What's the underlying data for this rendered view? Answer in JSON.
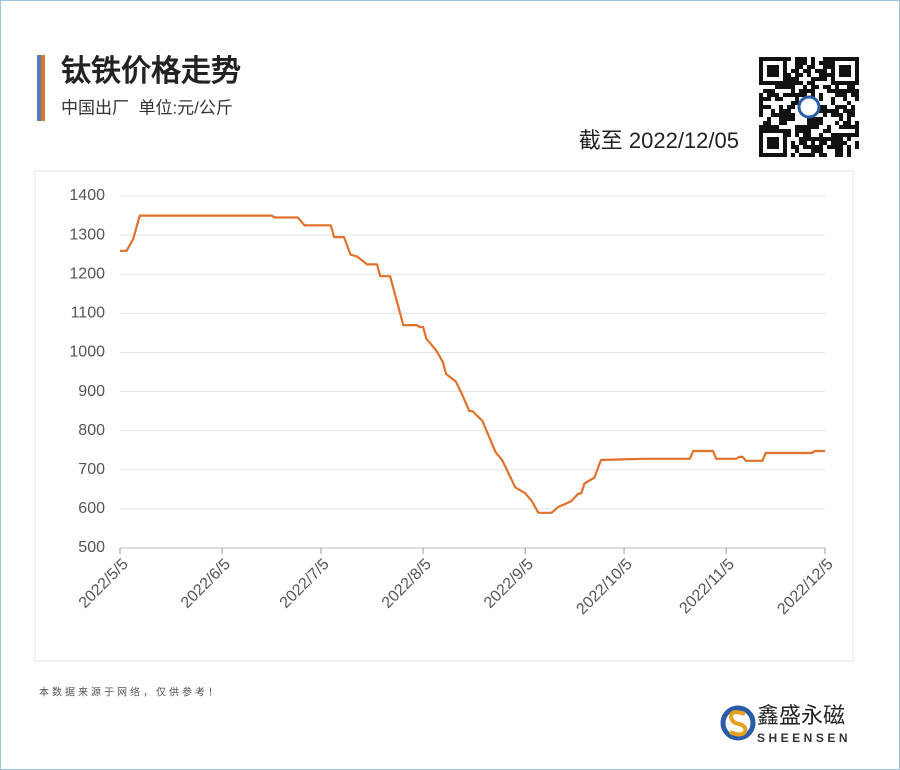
{
  "header": {
    "title": "钛铁价格走势",
    "subtitle": "中国出厂  单位:元/公斤",
    "as_of": "截至 2022/12/05"
  },
  "chart_data": {
    "type": "line",
    "color": "#e0712b",
    "grid": true,
    "x": [
      "2022/5/5",
      "2022/5/7",
      "2022/5/9",
      "2022/5/11",
      "2022/6/20",
      "2022/6/21",
      "2022/6/28",
      "2022/6/30",
      "2022/7/8",
      "2022/7/9",
      "2022/7/12",
      "2022/7/14",
      "2022/7/16",
      "2022/7/19",
      "2022/7/22",
      "2022/7/23",
      "2022/7/26",
      "2022/7/30",
      "2022/8/3",
      "2022/8/4",
      "2022/8/5",
      "2022/8/6",
      "2022/8/9",
      "2022/8/11",
      "2022/8/12",
      "2022/8/15",
      "2022/8/17",
      "2022/8/19",
      "2022/8/20",
      "2022/8/23",
      "2022/8/25",
      "2022/8/27",
      "2022/8/29",
      "2022/8/31",
      "2022/9/2",
      "2022/9/5",
      "2022/9/7",
      "2022/9/9",
      "2022/9/13",
      "2022/9/15",
      "2022/9/17",
      "2022/9/19",
      "2022/9/21",
      "2022/9/22",
      "2022/9/23",
      "2022/9/26",
      "2022/9/28",
      "2022/10/11",
      "2022/10/25",
      "2022/10/26",
      "2022/11/1",
      "2022/11/2",
      "2022/11/8",
      "2022/11/9",
      "2022/11/10",
      "2022/11/11",
      "2022/11/16",
      "2022/11/17",
      "2022/12/1",
      "2022/12/2",
      "2022/12/5"
    ],
    "values": [
      1260,
      1260,
      1290,
      1350,
      1350,
      1345,
      1345,
      1325,
      1325,
      1295,
      1295,
      1250,
      1245,
      1225,
      1225,
      1195,
      1195,
      1070,
      1070,
      1065,
      1065,
      1035,
      1005,
      975,
      945,
      925,
      890,
      850,
      850,
      825,
      785,
      745,
      725,
      690,
      655,
      640,
      620,
      590,
      590,
      605,
      612,
      620,
      638,
      640,
      665,
      680,
      725,
      728,
      728,
      748,
      748,
      728,
      728,
      733,
      733,
      723,
      723,
      743,
      743,
      748,
      748
    ],
    "xlim": [
      "2022/5/5",
      "2022/12/5"
    ],
    "xticks": [
      "2022/5/5",
      "2022/6/5",
      "2022/7/5",
      "2022/8/5",
      "2022/9/5",
      "2022/10/5",
      "2022/11/5",
      "2022/12/5"
    ],
    "ylim": [
      500,
      1400
    ],
    "yticks": [
      500,
      600,
      700,
      800,
      900,
      1000,
      1100,
      1200,
      1300,
      1400
    ]
  },
  "footer": {
    "note": "本数据来源于网络，仅供参考！",
    "brand": "鑫盛永磁",
    "brand_en": "SHEENSEN"
  }
}
